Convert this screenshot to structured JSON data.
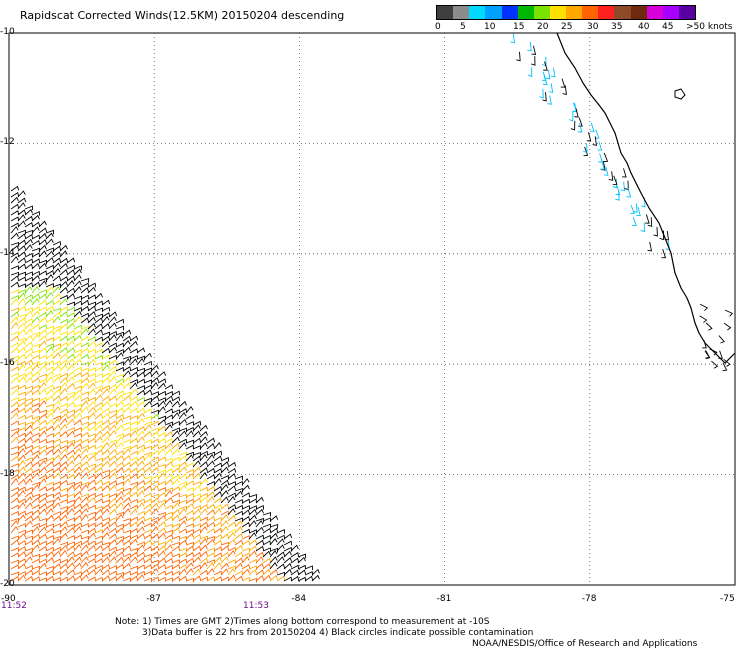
{
  "title": "Rapidscat Corrected Winds(12.5KM) 20150204 descending",
  "legend": {
    "colors": [
      "#3f3f3f",
      "#8c8c8c",
      "#00d8ff",
      "#00a0ff",
      "#0032ff",
      "#00b800",
      "#7be300",
      "#ffe000",
      "#ffa800",
      "#ff6400",
      "#ff2020",
      "#8c4a28",
      "#6e2a10",
      "#d800d8",
      "#a800ff",
      "#5a00a0"
    ],
    "labels": [
      "0",
      "5",
      "10",
      "15",
      "20",
      "25",
      "30",
      "35",
      "40",
      "45",
      ">50 knots"
    ]
  },
  "chart_data": {
    "type": "scatter",
    "description_free": true,
    "xlim": [
      -90,
      -75
    ],
    "ylim": [
      -20,
      -10
    ],
    "x_ticks": [
      "-90",
      "-87",
      "-84",
      "-81",
      "-78",
      "-75"
    ],
    "y_ticks": [
      "-10",
      "-12",
      "-14",
      "-16",
      "-18",
      "-20"
    ],
    "grid": true,
    "pass_times": [
      {
        "label": "11:52",
        "x": -90
      },
      {
        "label": "11:53",
        "x": -85
      }
    ]
  },
  "notes": {
    "line1": "Note: 1) Times are GMT 2)Times along bottom correspond to measurement at -10S",
    "line2": "3)Data buffer is 22 hrs from 20150204 4) Black circles indicate possible contamination",
    "line3": "NOAA/NESDIS/Office of Research and Applications"
  }
}
